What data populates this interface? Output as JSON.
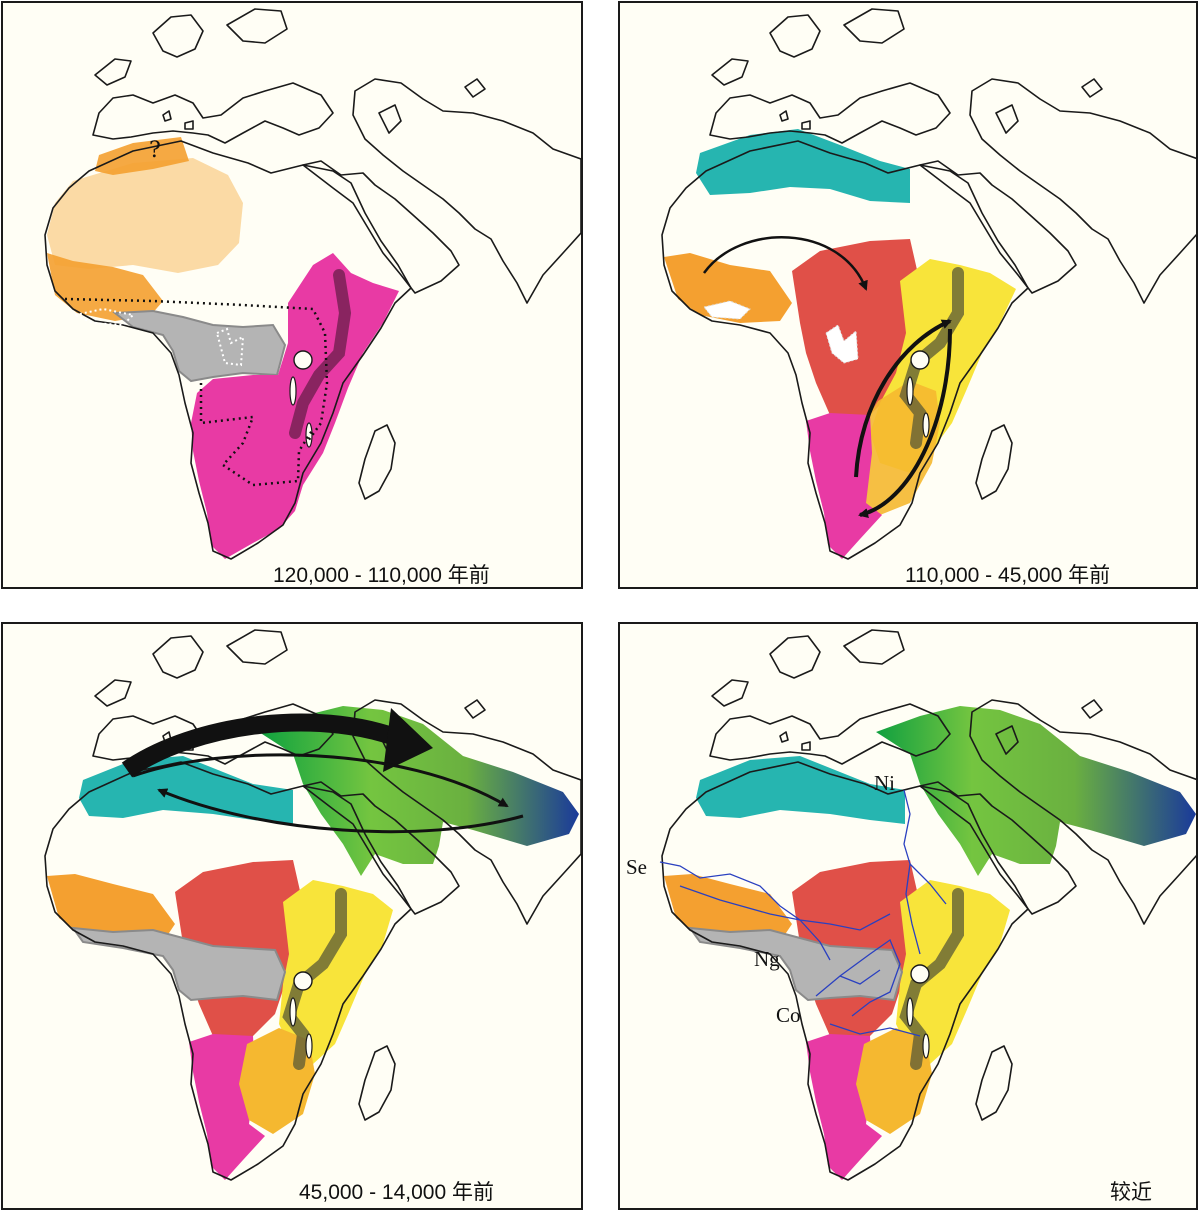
{
  "panels": [
    {
      "id": "p1",
      "caption": "120,000 - 110,000 年前"
    },
    {
      "id": "p2",
      "caption": "110,000 - 45,000 年前"
    },
    {
      "id": "p3",
      "caption": "45,000 - 14,000 年前"
    },
    {
      "id": "p4",
      "caption": "较近"
    }
  ],
  "map_labels": {
    "question_mark": "?",
    "river_senegal": "Se",
    "river_nile": "Ni",
    "river_niger": "Ng",
    "river_congo": "Co"
  },
  "colors": {
    "background": "#fffef5",
    "coastline": "#1a1a1a",
    "orange": "#f4a030",
    "light_orange": "#fbd8a0",
    "magenta": "#e83aa4",
    "gray": "#b4b4b4",
    "teal": "#26b5b0",
    "red": "#e05048",
    "yellow": "#f8e43a",
    "gold": "#f5b830",
    "green": "#74c540",
    "dark_green": "#10a040",
    "navy": "#1a3a9a",
    "river": "#2a40c0"
  }
}
